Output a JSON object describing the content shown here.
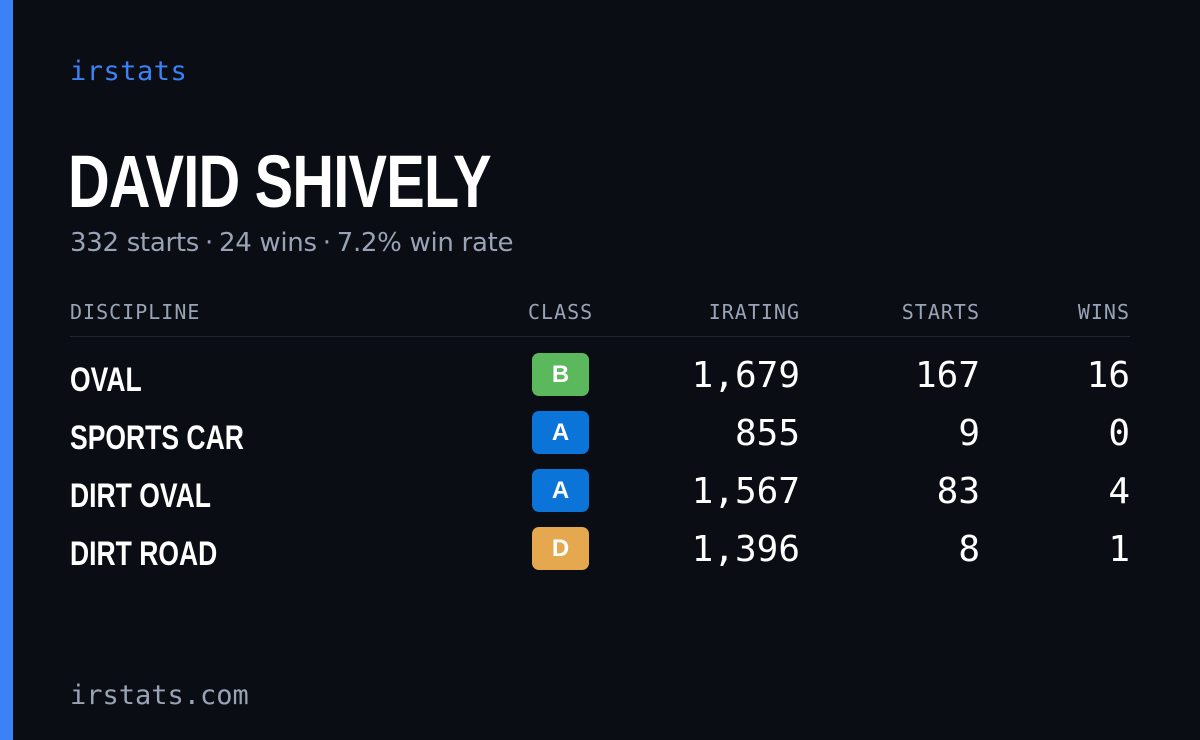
{
  "brand": "irstats",
  "driver": {
    "name": "DAVID SHIVELY",
    "starts_text": "332 starts",
    "wins_text": "24 wins",
    "win_rate_text": "7.2% win rate",
    "separator": "·"
  },
  "table": {
    "headers": {
      "discipline": "DISCIPLINE",
      "class": "CLASS",
      "irating": "IRATING",
      "starts": "STARTS",
      "wins": "WINS"
    },
    "rows": [
      {
        "discipline": "OVAL",
        "class": "B",
        "class_color": "#5cb85c",
        "irating": "1,679",
        "starts": "167",
        "wins": "16"
      },
      {
        "discipline": "SPORTS CAR",
        "class": "A",
        "class_color": "#0b74d9",
        "irating": "855",
        "starts": "9",
        "wins": "0"
      },
      {
        "discipline": "DIRT OVAL",
        "class": "A",
        "class_color": "#0b74d9",
        "irating": "1,567",
        "starts": "83",
        "wins": "4"
      },
      {
        "discipline": "DIRT ROAD",
        "class": "D",
        "class_color": "#e6a84e",
        "irating": "1,396",
        "starts": "8",
        "wins": "1"
      }
    ]
  },
  "footer": "irstats.com",
  "colors": {
    "background": "#0a0d14",
    "accent": "#3b82f6",
    "muted_text": "#9aa3b5"
  }
}
